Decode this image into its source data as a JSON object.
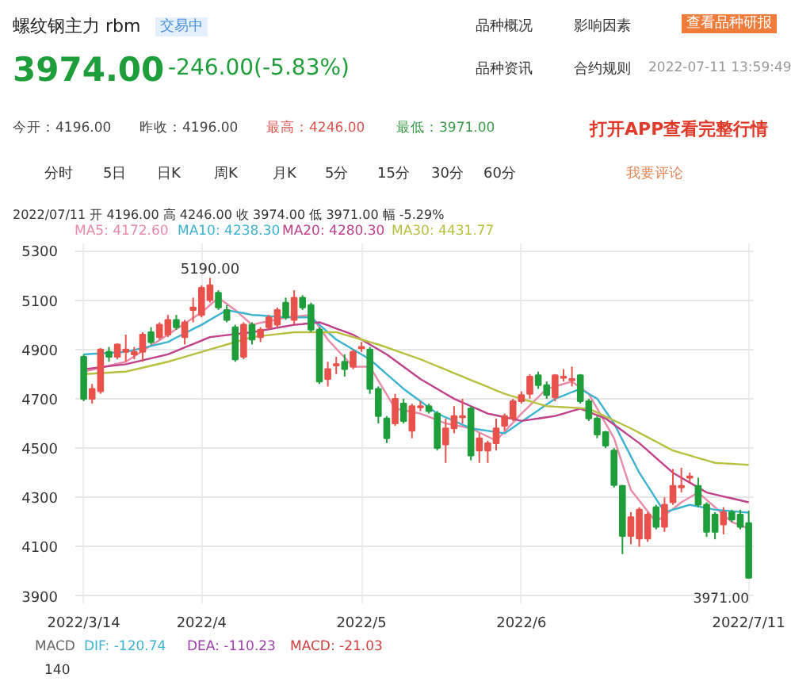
{
  "chart_data": {
    "type": "candlestick",
    "title": "螺纹钢主力 rbm",
    "categories": [
      "2022/3/14",
      null,
      null,
      null,
      null,
      null,
      null,
      null,
      null,
      null,
      null,
      null,
      null,
      null,
      "2022/4",
      null,
      null,
      null,
      null,
      null,
      null,
      null,
      null,
      null,
      null,
      null,
      null,
      null,
      null,
      null,
      null,
      null,
      null,
      "2022/5",
      null,
      null,
      null,
      null,
      null,
      null,
      null,
      null,
      null,
      null,
      null,
      null,
      null,
      null,
      null,
      null,
      null,
      null,
      "2022/6",
      null,
      null,
      null,
      null,
      null,
      null,
      null,
      null,
      null,
      null,
      null,
      null,
      null,
      null,
      null,
      null,
      null,
      null,
      null,
      null,
      null,
      null,
      null,
      null,
      null,
      null,
      "2022/7/11"
    ],
    "ohlc": [
      [
        4870,
        4880,
        4690,
        4700
      ],
      [
        4700,
        4760,
        4680,
        4740
      ],
      [
        4730,
        4905,
        4720,
        4900
      ],
      [
        4890,
        4910,
        4850,
        4870
      ],
      [
        4870,
        4925,
        4860,
        4920
      ],
      [
        4890,
        4960,
        4850,
        4900
      ],
      [
        4880,
        4910,
        4860,
        4890
      ],
      [
        4890,
        4970,
        4850,
        4960
      ],
      [
        4970,
        4990,
        4920,
        4930
      ],
      [
        4950,
        5010,
        4940,
        5000
      ],
      [
        4960,
        5040,
        4950,
        5020
      ],
      [
        5020,
        5040,
        4980,
        4990
      ],
      [
        4950,
        5020,
        4920,
        5010
      ],
      [
        5060,
        5110,
        5010,
        5070
      ],
      [
        5040,
        5160,
        5030,
        5150
      ],
      [
        5100,
        5190,
        5090,
        5160
      ],
      [
        5130,
        5140,
        5060,
        5070
      ],
      [
        5060,
        5080,
        5010,
        5020
      ],
      [
        4990,
        5000,
        4850,
        4860
      ],
      [
        4870,
        5010,
        4860,
        5000
      ],
      [
        5000,
        5010,
        4920,
        4940
      ],
      [
        4950,
        4990,
        4930,
        4980
      ],
      [
        4990,
        5040,
        4980,
        5030
      ],
      [
        5000,
        5070,
        4990,
        5060
      ],
      [
        5090,
        5110,
        5020,
        5030
      ],
      [
        5020,
        5140,
        5000,
        5110
      ],
      [
        5110,
        5120,
        5060,
        5070
      ],
      [
        5080,
        5090,
        4970,
        4980
      ],
      [
        4980,
        4990,
        4760,
        4770
      ],
      [
        4780,
        4850,
        4750,
        4820
      ],
      [
        4835,
        4870,
        4800,
        4840
      ],
      [
        4850,
        4880,
        4790,
        4820
      ],
      [
        4830,
        4900,
        4820,
        4890
      ],
      [
        4905,
        4930,
        4890,
        4910
      ],
      [
        4900,
        4910,
        4720,
        4740
      ],
      [
        4740,
        4750,
        4600,
        4630
      ],
      [
        4620,
        4630,
        4520,
        4540
      ],
      [
        4600,
        4720,
        4590,
        4700
      ],
      [
        4680,
        4700,
        4600,
        4610
      ],
      [
        4570,
        4680,
        4540,
        4670
      ],
      [
        4665,
        4690,
        4650,
        4670
      ],
      [
        4670,
        4680,
        4640,
        4650
      ],
      [
        4640,
        4650,
        4490,
        4500
      ],
      [
        4515,
        4620,
        4440,
        4580
      ],
      [
        4580,
        4670,
        4560,
        4630
      ],
      [
        4625,
        4700,
        4600,
        4630
      ],
      [
        4660,
        4670,
        4450,
        4470
      ],
      [
        4490,
        4560,
        4440,
        4540
      ],
      [
        4490,
        4530,
        4440,
        4520
      ],
      [
        4520,
        4620,
        4490,
        4580
      ],
      [
        4590,
        4640,
        4570,
        4630
      ],
      [
        4620,
        4700,
        4610,
        4690
      ],
      [
        4690,
        4730,
        4680,
        4715
      ],
      [
        4720,
        4800,
        4700,
        4790
      ],
      [
        4795,
        4810,
        4740,
        4755
      ],
      [
        4755,
        4770,
        4700,
        4715
      ],
      [
        4705,
        4800,
        4690,
        4795
      ],
      [
        4785,
        4820,
        4770,
        4790
      ],
      [
        4775,
        4830,
        4750,
        4780
      ],
      [
        4795,
        4800,
        4680,
        4690
      ],
      [
        4690,
        4700,
        4610,
        4620
      ],
      [
        4620,
        4630,
        4540,
        4555
      ],
      [
        4565,
        4570,
        4500,
        4510
      ],
      [
        4490,
        4500,
        4340,
        4350
      ],
      [
        4347,
        4350,
        4070,
        4143
      ],
      [
        4143,
        4240,
        4110,
        4220
      ],
      [
        4133,
        4260,
        4100,
        4250
      ],
      [
        4133,
        4240,
        4120,
        4230
      ],
      [
        4260,
        4270,
        4170,
        4180
      ],
      [
        4180,
        4300,
        4160,
        4270
      ],
      [
        4280,
        4415,
        4270,
        4347
      ],
      [
        4340,
        4420,
        4320,
        4347
      ],
      [
        4380,
        4400,
        4360,
        4385
      ],
      [
        4347,
        4380,
        4260,
        4270
      ],
      [
        4270,
        4280,
        4140,
        4160
      ],
      [
        4230,
        4240,
        4130,
        4160
      ],
      [
        4190,
        4260,
        4150,
        4240
      ],
      [
        4240,
        4250,
        4200,
        4210
      ],
      [
        4230,
        4250,
        4170,
        4180
      ],
      [
        4196,
        4246,
        3971,
        3974
      ]
    ],
    "colors": [
      "#1e9e3a",
      "#e8524a",
      "#e8524a",
      "#1e9e3a",
      "#e8524a",
      "#e8524a",
      "#e8524a",
      "#e8524a",
      "#1e9e3a",
      "#e8524a",
      "#e8524a",
      "#1e9e3a",
      "#e8524a",
      "#e8524a",
      "#e8524a",
      "#e8524a",
      "#1e9e3a",
      "#1e9e3a",
      "#1e9e3a",
      "#e8524a",
      "#1e9e3a",
      "#e8524a",
      "#e8524a",
      "#e8524a",
      "#1e9e3a",
      "#e8524a",
      "#1e9e3a",
      "#1e9e3a",
      "#1e9e3a",
      "#e8524a",
      "#e8524a",
      "#1e9e3a",
      "#e8524a",
      "#e8524a",
      "#1e9e3a",
      "#1e9e3a",
      "#1e9e3a",
      "#e8524a",
      "#1e9e3a",
      "#e8524a",
      "#e8524a",
      "#1e9e3a",
      "#1e9e3a",
      "#e8524a",
      "#e8524a",
      "#e8524a",
      "#1e9e3a",
      "#e8524a",
      "#e8524a",
      "#e8524a",
      "#e8524a",
      "#e8524a",
      "#e8524a",
      "#e8524a",
      "#1e9e3a",
      "#1e9e3a",
      "#e8524a",
      "#e8524a",
      "#e8524a",
      "#1e9e3a",
      "#1e9e3a",
      "#1e9e3a",
      "#1e9e3a",
      "#1e9e3a",
      "#1e9e3a",
      "#e8524a",
      "#e8524a",
      "#e8524a",
      "#1e9e3a",
      "#e8524a",
      "#e8524a",
      "#e8524a",
      "#e8524a",
      "#1e9e3a",
      "#1e9e3a",
      "#1e9e3a",
      "#e8524a",
      "#1e9e3a",
      "#1e9e3a",
      "#1e9e3a"
    ],
    "series": [
      {
        "name": "MA5: 4172.60",
        "type": "line",
        "color": "#e88aa8",
        "values": [
          4810,
          4818,
          4826,
          4834,
          4842,
          4850,
          4872,
          4894,
          4916,
          4938,
          4960,
          4983,
          5005,
          5028,
          5050,
          5080,
          5110,
          5085,
          5060,
          5030,
          5000,
          5008,
          5015,
          5022,
          5030,
          5033,
          5037,
          5040,
          4990,
          4940,
          4903,
          4867,
          4830,
          4830,
          4830,
          4773,
          4717,
          4660,
          4653,
          4647,
          4640,
          4627,
          4613,
          4600,
          4593,
          4587,
          4580,
          4563,
          4547,
          4530,
          4567,
          4603,
          4640,
          4673,
          4707,
          4740,
          4750,
          4760,
          4770,
          4745,
          4720,
          4660,
          4600,
          4540,
          4435,
          4330,
          4287,
          4243,
          4200,
          4227,
          4253,
          4280,
          4300,
          4320,
          4290,
          4260,
          4230,
          4200,
          4187,
          4173
        ]
      },
      {
        "name": "MA10: 4238.30",
        "type": "line",
        "color": "#3cb4d0",
        "values": [
          4880,
          4882,
          4884,
          4886,
          4888,
          4890,
          4898,
          4906,
          4914,
          4922,
          4930,
          4948,
          4965,
          4983,
          5000,
          5020,
          5040,
          5060,
          5053,
          5047,
          5040,
          5038,
          5035,
          5033,
          5030,
          5030,
          5030,
          5030,
          5000,
          4970,
          4940,
          4920,
          4900,
          4880,
          4860,
          4830,
          4800,
          4770,
          4740,
          4715,
          4690,
          4665,
          4640,
          4625,
          4610,
          4595,
          4580,
          4575,
          4570,
          4565,
          4560,
          4583,
          4607,
          4630,
          4653,
          4677,
          4700,
          4713,
          4727,
          4740,
          4720,
          4700,
          4650,
          4600,
          4533,
          4467,
          4400,
          4347,
          4293,
          4240,
          4250,
          4260,
          4270,
          4263,
          4257,
          4250,
          4247,
          4244,
          4241,
          4238
        ]
      },
      {
        "name": "MA20: 4280.30",
        "type": "line",
        "color": "#c0408a",
        "values": [
          4820,
          4824,
          4828,
          4832,
          4836,
          4840,
          4848,
          4856,
          4864,
          4872,
          4880,
          4894,
          4908,
          4922,
          4936,
          4950,
          4954,
          4958,
          4962,
          4966,
          4970,
          4976,
          4982,
          4988,
          4994,
          5000,
          5003,
          5007,
          5010,
          4998,
          4985,
          4973,
          4960,
          4940,
          4920,
          4900,
          4880,
          4855,
          4830,
          4805,
          4780,
          4760,
          4740,
          4720,
          4700,
          4685,
          4670,
          4655,
          4640,
          4633,
          4625,
          4618,
          4610,
          4615,
          4620,
          4625,
          4630,
          4640,
          4650,
          4660,
          4647,
          4633,
          4620,
          4595,
          4570,
          4545,
          4520,
          4490,
          4460,
          4430,
          4400,
          4380,
          4360,
          4340,
          4320,
          4312,
          4304,
          4296,
          4288,
          4280
        ]
      },
      {
        "name": "MA30: 4431.77",
        "type": "line",
        "color": "#b8c040",
        "values": [
          4800,
          4802,
          4804,
          4806,
          4808,
          4810,
          4818,
          4826,
          4834,
          4842,
          4850,
          4860,
          4870,
          4880,
          4890,
          4900,
          4910,
          4920,
          4930,
          4940,
          4950,
          4954,
          4958,
          4962,
          4966,
          4970,
          4970,
          4970,
          4970,
          4970,
          4970,
          4960,
          4950,
          4940,
          4930,
          4920,
          4908,
          4896,
          4884,
          4872,
          4860,
          4846,
          4832,
          4818,
          4804,
          4790,
          4776,
          4762,
          4748,
          4734,
          4720,
          4710,
          4700,
          4690,
          4680,
          4670,
          4668,
          4666,
          4664,
          4662,
          4660,
          4644,
          4628,
          4612,
          4596,
          4580,
          4562,
          4544,
          4526,
          4508,
          4490,
          4480,
          4470,
          4460,
          4450,
          4440,
          4438,
          4436,
          4434,
          4432
        ]
      }
    ],
    "ylim": [
      3870,
      5330
    ],
    "yticks": [
      3900,
      4100,
      4300,
      4500,
      4700,
      4900,
      5100,
      5300
    ],
    "grid": true,
    "annotations": [
      "交易中",
      "3974.00",
      "-246.00(-5.83%)",
      "品种概况",
      "影响因素",
      "品种资讯",
      "合约规则",
      "查看品种研报",
      "2022-07-11 13:59:49",
      "今开：4196.00",
      "昨收：4196.00",
      "最高：4246.00",
      "最低：3971.00",
      "打开APP查看完整行情",
      "分时",
      "5日",
      "日K",
      "周K",
      "月K",
      "5分",
      "15分",
      "30分",
      "60分",
      "我要评论",
      "2022/07/11  开 4196.00  高 4246.00  收 3974.00  低 3971.00  幅 -5.29%",
      "MACD",
      "DIF: -120.74",
      "DEA: -110.23",
      "MACD: -21.03",
      "140",
      "3971.00",
      {
        "text": "5190.00",
        "y": 5190
      }
    ]
  }
}
